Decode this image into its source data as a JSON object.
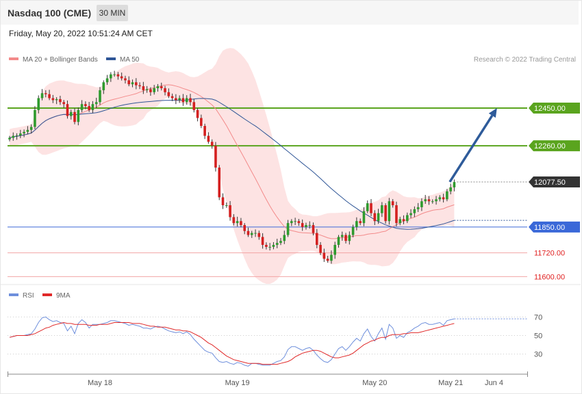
{
  "header": {
    "title": "Nasdaq 100 (CME)",
    "timeframe": "30 MIN",
    "timestamp": "Friday, May 20, 2022 10:51:24 AM CET"
  },
  "legend": {
    "ma20": "MA 20 + Bollinger Bands",
    "ma50": "MA 50",
    "credit": "Research © 2022 Trading Central"
  },
  "rsi_legend": {
    "rsi": "RSI",
    "ma9": "9MA"
  },
  "colors": {
    "ma20": "#f38a8a",
    "band_fill": "#fde3e3",
    "ma50": "#2e5596",
    "up_candle": "#2e9b2e",
    "down_candle": "#d42020",
    "resistance": "#5aa41e",
    "support": "#3a68d8",
    "extra_support": "#f3a5a5",
    "arrow": "#2e5b9a",
    "current": "#333333",
    "rsi_line": "#6e8fdc",
    "rsi_ma": "#e02828"
  },
  "chart_data": [
    {
      "type": "candlestick",
      "y_domain": [
        11560,
        12650
      ],
      "time_axis": {
        "ticks": [
          "May 18",
          "May 19",
          "May 20",
          "May 21",
          "Jun 4"
        ],
        "tick_bars": [
          25,
          63,
          101,
          122,
          134
        ]
      },
      "levels": [
        {
          "name": "resistance-2",
          "value": 12450,
          "label": "12450.00",
          "kind": "resistance"
        },
        {
          "name": "resistance-1",
          "value": 12260,
          "label": "12260.00",
          "kind": "resistance"
        },
        {
          "name": "current-price",
          "value": 12077.5,
          "label": "12077.50",
          "kind": "current"
        },
        {
          "name": "support-1",
          "value": 11850,
          "label": "11850.00",
          "kind": "support"
        },
        {
          "name": "support-2",
          "value": 11720,
          "label": "11720.00",
          "kind": "extra_support"
        },
        {
          "name": "support-3",
          "value": 11600,
          "label": "11600.00",
          "kind": "extra_support"
        }
      ],
      "forecast_arrow": {
        "from": [
          121,
          12077.5
        ],
        "to": [
          135,
          12450
        ]
      },
      "closes": [
        12300,
        12310,
        12312,
        12322,
        12330,
        12340,
        12355,
        12440,
        12500,
        12525,
        12520,
        12500,
        12490,
        12495,
        12480,
        12470,
        12410,
        12430,
        12380,
        12440,
        12470,
        12460,
        12440,
        12470,
        12480,
        12540,
        12580,
        12600,
        12620,
        12620,
        12610,
        12600,
        12590,
        12570,
        12580,
        12565,
        12560,
        12540,
        12545,
        12530,
        12550,
        12560,
        12550,
        12530,
        12510,
        12500,
        12490,
        12500,
        12480,
        12500,
        12480,
        12440,
        12400,
        12360,
        12310,
        12280,
        12260,
        12150,
        12000,
        11960,
        11960,
        11900,
        11870,
        11880,
        11860,
        11830,
        11810,
        11820,
        11820,
        11800,
        11760,
        11750,
        11750,
        11760,
        11770,
        11780,
        11810,
        11870,
        11880,
        11880,
        11870,
        11850,
        11860,
        11860,
        11820,
        11760,
        11720,
        11690,
        11680,
        11710,
        11760,
        11800,
        11810,
        11780,
        11810,
        11850,
        11880,
        11870,
        11930,
        11970,
        11920,
        11880,
        11920,
        11960,
        11880,
        11980,
        11960,
        11870,
        11890,
        11880,
        11910,
        11920,
        11940,
        11950,
        11980,
        11990,
        11980,
        11980,
        11990,
        12000,
        11990,
        12030,
        12050,
        12077
      ],
      "rsi": {
        "y_domain": [
          15,
          85
        ],
        "ticks": [
          70,
          50,
          30
        ],
        "values": [
          48,
          49,
          50,
          50,
          50,
          51,
          52,
          57,
          64,
          69,
          70,
          67,
          65,
          66,
          64,
          63,
          55,
          60,
          52,
          63,
          67,
          64,
          58,
          62,
          62,
          62,
          63,
          64,
          66,
          66,
          65,
          64,
          63,
          61,
          62,
          61,
          60,
          58,
          58,
          57,
          59,
          60,
          59,
          57,
          55,
          54,
          53,
          54,
          52,
          54,
          51,
          46,
          42,
          38,
          34,
          32,
          31,
          26,
          22,
          21,
          22,
          20,
          19,
          21,
          20,
          18,
          17,
          20,
          20,
          19,
          18,
          18,
          18,
          20,
          22,
          23,
          27,
          35,
          38,
          38,
          36,
          34,
          36,
          37,
          34,
          29,
          25,
          22,
          21,
          24,
          30,
          36,
          38,
          34,
          38,
          43,
          47,
          44,
          52,
          57,
          49,
          44,
          52,
          58,
          46,
          62,
          58,
          47,
          50,
          48,
          53,
          55,
          58,
          60,
          63,
          64,
          62,
          62,
          63,
          64,
          61,
          66,
          67,
          68
        ],
        "ma9_values": [
          48,
          49,
          50,
          50,
          50,
          50,
          51,
          52,
          54,
          56,
          58,
          59,
          61,
          62,
          63,
          64,
          63,
          63,
          62,
          62,
          62,
          62,
          61,
          61,
          61,
          62,
          62,
          62,
          63,
          64,
          64,
          64,
          64,
          64,
          63,
          63,
          63,
          62,
          61,
          60,
          60,
          59,
          59,
          59,
          58,
          57,
          56,
          56,
          55,
          55,
          54,
          52,
          50,
          48,
          45,
          42,
          40,
          37,
          34,
          31,
          28,
          26,
          24,
          23,
          22,
          21,
          20,
          20,
          20,
          20,
          19,
          19,
          19,
          19,
          19,
          20,
          21,
          22,
          24,
          27,
          29,
          31,
          32,
          33,
          34,
          34,
          33,
          31,
          29,
          27,
          26,
          26,
          27,
          28,
          29,
          31,
          34,
          37,
          40,
          42,
          44,
          45,
          47,
          48,
          48,
          50,
          51,
          51,
          51,
          52,
          52,
          53,
          53,
          53,
          54,
          55,
          56,
          57,
          58,
          59,
          60,
          61,
          62,
          63
        ]
      }
    }
  ]
}
